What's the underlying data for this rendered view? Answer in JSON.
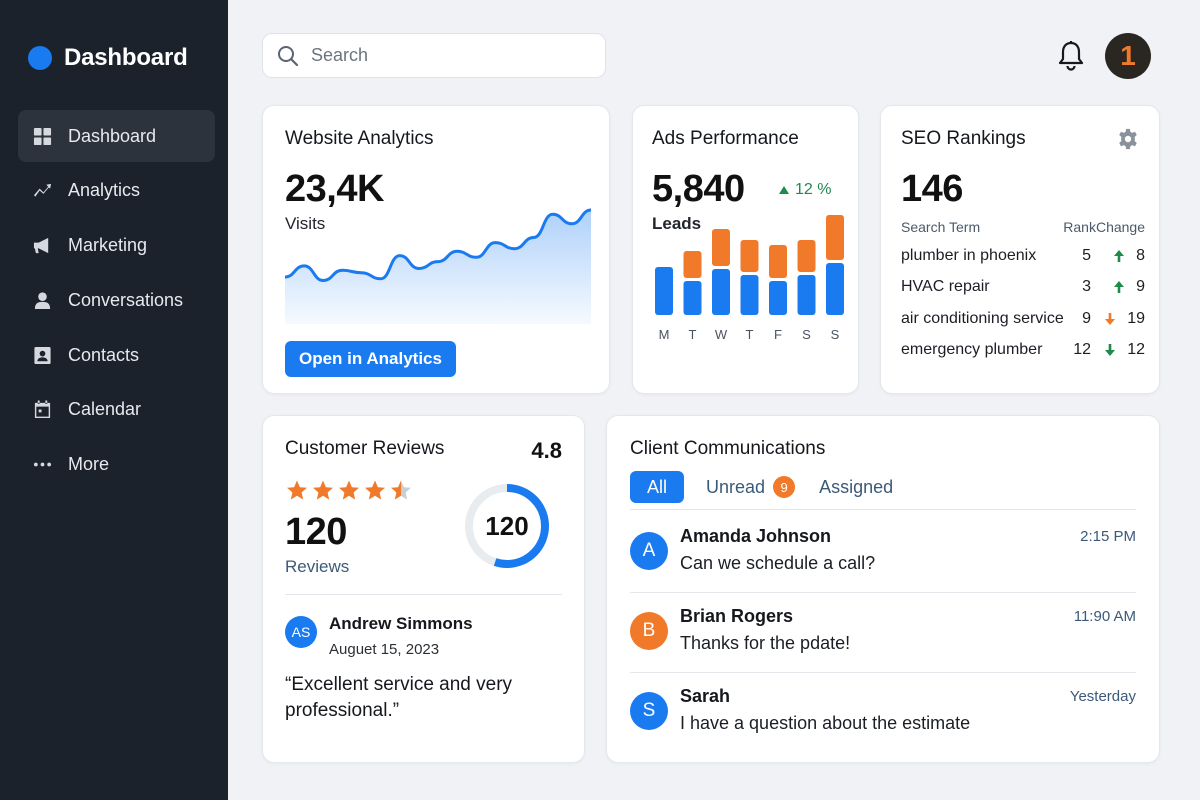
{
  "app": {
    "title": "Dashboard",
    "brand_color": "#1a7bf0"
  },
  "sidebar": {
    "items": [
      {
        "label": "Dashboard",
        "icon": "grid-icon",
        "active": true
      },
      {
        "label": "Analytics",
        "icon": "trend-icon"
      },
      {
        "label": "Marketing",
        "icon": "megaphone-icon"
      },
      {
        "label": "Conversations",
        "icon": "person-icon"
      },
      {
        "label": "Contacts",
        "icon": "contact-card-icon"
      },
      {
        "label": "Calendar",
        "icon": "calendar-icon"
      },
      {
        "label": "More",
        "icon": "more-dots-icon"
      }
    ]
  },
  "topbar": {
    "search_placeholder": "Search",
    "avatar_label": "1",
    "notifications_icon": "bell-icon"
  },
  "website_analytics": {
    "title": "Website Analytics",
    "value": "23,4K",
    "label": "Visits",
    "button_label": "Open in Analytics",
    "trend": [
      0.22,
      0.35,
      0.18,
      0.3,
      0.27,
      0.2,
      0.47,
      0.32,
      0.4,
      0.52,
      0.45,
      0.62,
      0.55,
      0.68,
      0.95,
      0.84,
      1.0
    ]
  },
  "ads_performance": {
    "title": "Ads Performance",
    "value": "5,840",
    "change": "12 %",
    "label": "Leads",
    "chart_data": {
      "type": "bar",
      "categories": [
        "M",
        "T",
        "W",
        "T",
        "F",
        "S",
        "S"
      ],
      "series": [
        {
          "values": [
            48,
            34,
            46,
            40,
            34,
            40,
            52
          ],
          "color": "#1a7bf0"
        },
        {
          "values": [
            0,
            27,
            37,
            32,
            33,
            32,
            45
          ],
          "color": "#f07a2a"
        }
      ],
      "stacked": true
    }
  },
  "seo_rankings": {
    "title": "SEO Rankings",
    "value": "146",
    "headers": {
      "term": "Search Term",
      "rank": "Rank",
      "change": "Change"
    },
    "rows": [
      {
        "term": "plumber in phoenix",
        "rank": "5",
        "change": "8",
        "direction": "up",
        "color": "#1f8a4c"
      },
      {
        "term": "HVAC repair",
        "rank": "3",
        "change": "9",
        "direction": "up",
        "color": "#1f8a4c"
      },
      {
        "term": "air conditioning service",
        "rank": "9",
        "change": "19",
        "direction": "down",
        "color": "#f07a2a"
      },
      {
        "term": "emergency plumber",
        "rank": "12",
        "change": "12",
        "direction": "down",
        "color": "#1f8a4c"
      }
    ]
  },
  "customer_reviews": {
    "title": "Customer Reviews",
    "score": "4.8",
    "rating_fraction": 0.9,
    "count": "120",
    "count_label": "Reviews",
    "ring_value": "120",
    "ring_fraction": 0.55,
    "review": {
      "initials": "AS",
      "name": "Andrew Simmons",
      "date": "Auguet 15, 2023",
      "quote": "“Excellent service and very professional.”"
    }
  },
  "client_communications": {
    "title": "Client Communications",
    "tabs": {
      "all": "All",
      "unread": "Unread",
      "unread_count": "9",
      "assigned": "Assigned"
    },
    "messages": [
      {
        "initial": "A",
        "name": "Amanda Johnson",
        "text": "Can we schedule a call?",
        "time": "2:15 PM",
        "color": "#1a7bf0"
      },
      {
        "initial": "B",
        "name": "Brian Rogers",
        "text": "Thanks for the pdate!",
        "time": "11:90 AM",
        "color": "#f07a2a"
      },
      {
        "initial": "S",
        "name": "Sarah",
        "text": "I have a question about the estimate",
        "time": "Yesterday",
        "color": "#1a7bf0"
      }
    ]
  }
}
